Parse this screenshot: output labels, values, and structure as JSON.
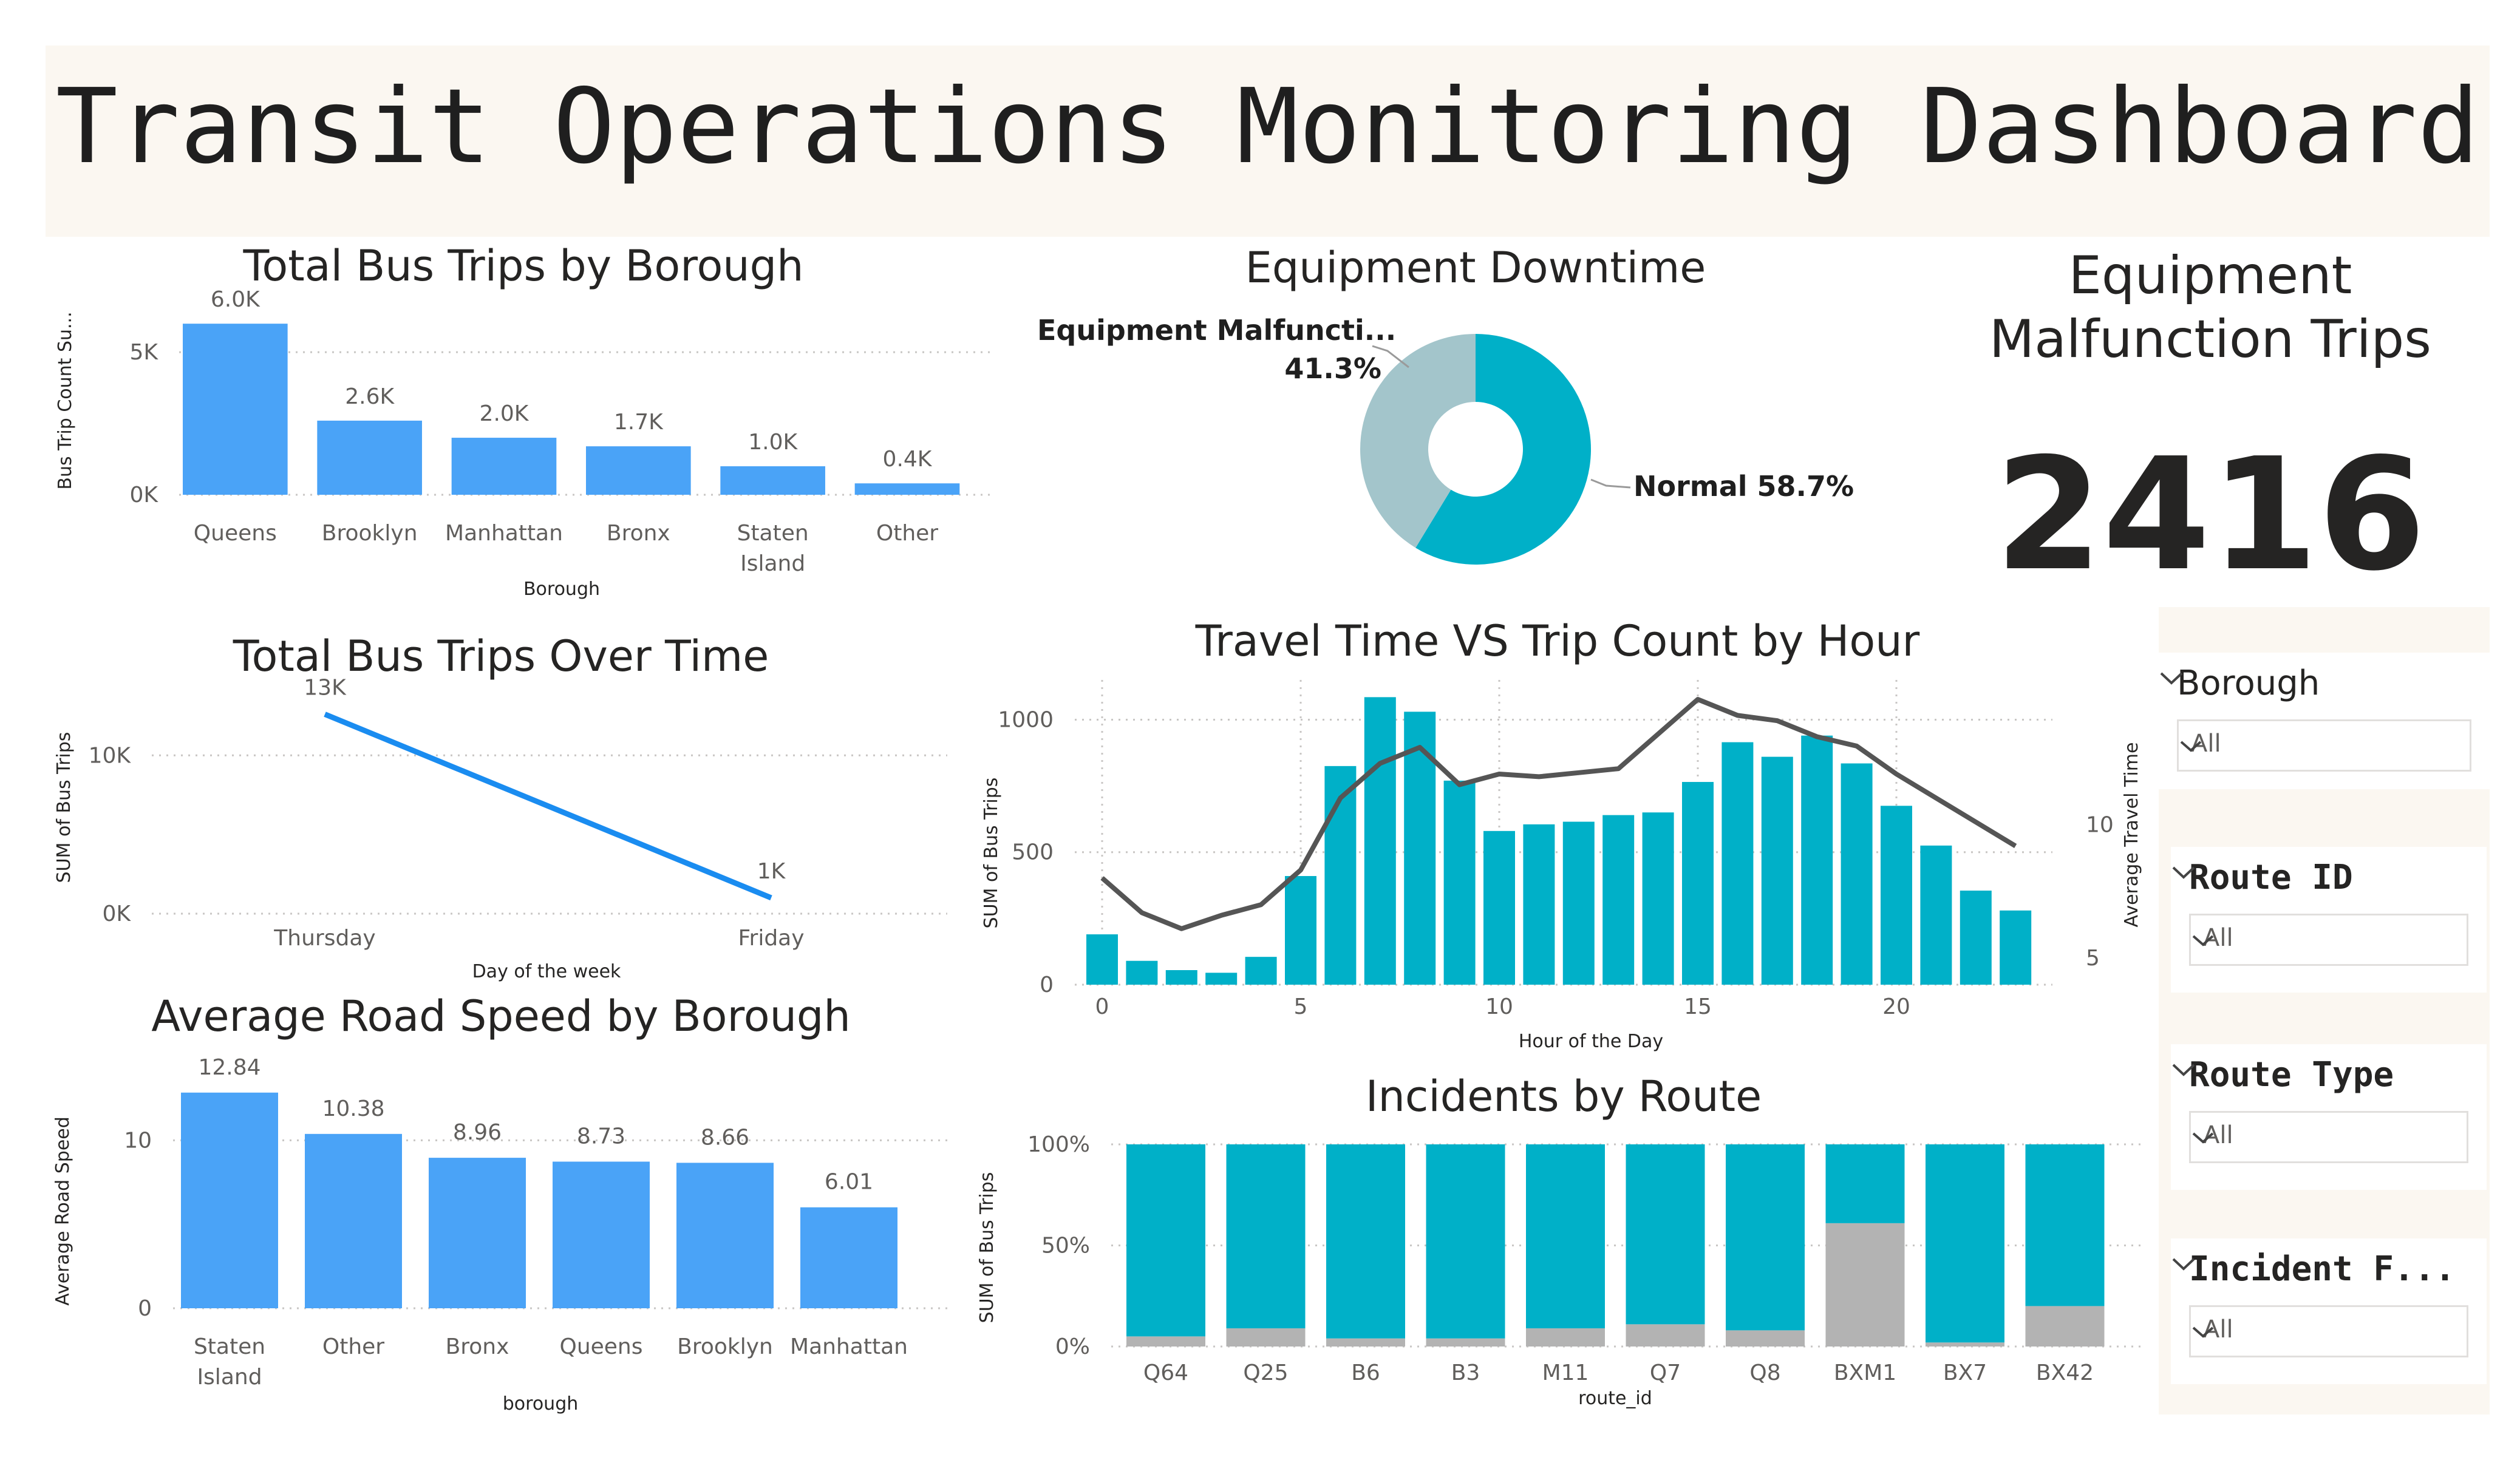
{
  "header": {
    "title": "Transit Operations Monitoring Dashboard"
  },
  "colors": {
    "bar_blue": "#4aa3f7",
    "teal": "#00b0c8",
    "teal_light": "#a3c5cb",
    "gray": "#b3b3b3",
    "line_dark": "#555555",
    "cream": "#fbf7f1"
  },
  "kpi": {
    "title_line1": "Equipment",
    "title_line2": "Malfunction Trips",
    "value": "2416"
  },
  "slicers": [
    {
      "title": "Borough",
      "value": "All"
    },
    {
      "title": "Route ID",
      "value": "All"
    },
    {
      "title": "Route Type",
      "value": "All"
    },
    {
      "title": "Incident F...",
      "value": "All"
    }
  ],
  "chart_data": [
    {
      "id": "trips_by_borough",
      "type": "bar",
      "title": "Total Bus Trips by Borough",
      "xlabel": "Borough",
      "ylabel": "Bus Trip Count Su...",
      "categories": [
        "Queens",
        "Brooklyn",
        "Manhattan",
        "Bronx",
        "Staten Island",
        "Other"
      ],
      "values": [
        6000,
        2600,
        2000,
        1700,
        1000,
        400
      ],
      "data_labels": [
        "6.0K",
        "2.6K",
        "2.0K",
        "1.7K",
        "1.0K",
        "0.4K"
      ],
      "yticks": [
        0,
        5000
      ],
      "ytick_labels": [
        "0K",
        "5K"
      ],
      "ylim": [
        0,
        6600
      ],
      "grid": true
    },
    {
      "id": "equipment_downtime",
      "type": "pie",
      "title": "Equipment Downtime",
      "slices": [
        {
          "label": "Normal",
          "value": 58.7,
          "text": "Normal 58.7%"
        },
        {
          "label": "Equipment Malfuncti...",
          "value": 41.3,
          "text": "41.3%"
        }
      ]
    },
    {
      "id": "trips_over_time",
      "type": "line",
      "title": "Total Bus Trips Over Time",
      "xlabel": "Day of the week",
      "ylabel": "SUM of Bus Trips",
      "categories": [
        "Thursday",
        "Friday"
      ],
      "values": [
        12600,
        1000
      ],
      "data_labels": [
        "13K",
        "1K"
      ],
      "yticks": [
        0,
        10000
      ],
      "ytick_labels": [
        "0K",
        "10K"
      ],
      "ylim": [
        0,
        14000
      ],
      "grid": true
    },
    {
      "id": "travel_vs_trips_by_hour",
      "type": "bar",
      "title": "Travel Time VS Trip Count by Hour",
      "xlabel": "Hour of the Day",
      "ylabel": "SUM of Bus Trips",
      "y2label": "Average Travel Time",
      "x": [
        0,
        1,
        2,
        3,
        4,
        5,
        6,
        7,
        8,
        9,
        10,
        11,
        12,
        13,
        14,
        15,
        16,
        17,
        18,
        19,
        20,
        21,
        22,
        23
      ],
      "series": [
        {
          "name": "SUM of Bus Trips",
          "type": "bar",
          "values": [
            190,
            90,
            55,
            45,
            105,
            410,
            825,
            1085,
            1030,
            770,
            580,
            605,
            615,
            640,
            650,
            765,
            915,
            860,
            940,
            835,
            675,
            525,
            355,
            280
          ]
        },
        {
          "name": "Average Travel Time",
          "type": "line",
          "axis": "y2",
          "values": [
            8.0,
            6.7,
            6.1,
            6.6,
            7.0,
            8.3,
            11.0,
            12.3,
            12.9,
            11.5,
            11.9,
            11.8,
            11.95,
            12.1,
            13.4,
            14.7,
            14.1,
            13.9,
            13.3,
            12.95,
            11.9,
            11.0,
            10.1,
            9.2
          ]
        }
      ],
      "xticks": [
        0,
        5,
        10,
        15,
        20
      ],
      "yticks": [
        0,
        500,
        1000
      ],
      "y2ticks": [
        5,
        10
      ],
      "ylim": [
        0,
        1150
      ],
      "y2lim": [
        4.0,
        14.7
      ],
      "grid": true
    },
    {
      "id": "avg_speed_by_borough",
      "type": "bar",
      "title": "Average Road Speed by Borough",
      "xlabel": "borough",
      "ylabel": "Average Road Speed",
      "categories": [
        "Staten Island",
        "Other",
        "Bronx",
        "Queens",
        "Brooklyn",
        "Manhattan"
      ],
      "values": [
        12.84,
        10.38,
        8.96,
        8.73,
        8.66,
        6.01
      ],
      "data_labels": [
        "12.84",
        "10.38",
        "8.96",
        "8.73",
        "8.66",
        "6.01"
      ],
      "yticks": [
        0,
        10
      ],
      "ylim": [
        0,
        15
      ],
      "grid": true
    },
    {
      "id": "incidents_by_route",
      "type": "bar",
      "stacked_percent": true,
      "title": "Incidents by Route",
      "xlabel": "route_id",
      "ylabel": "SUM of Bus Trips",
      "categories": [
        "Q64",
        "Q25",
        "B6",
        "B3",
        "M11",
        "Q7",
        "Q8",
        "BXM1",
        "BX7",
        "BX42"
      ],
      "series": [
        {
          "name": "gray",
          "values": [
            5,
            9,
            4,
            4,
            9,
            11,
            8,
            61,
            2,
            20
          ]
        },
        {
          "name": "teal",
          "values": [
            95,
            91,
            96,
            96,
            91,
            89,
            92,
            39,
            98,
            80
          ]
        }
      ],
      "yticks": [
        0,
        50,
        100
      ],
      "ytick_labels": [
        "0%",
        "50%",
        "100%"
      ],
      "ylim": [
        0,
        100
      ],
      "grid": true
    }
  ]
}
